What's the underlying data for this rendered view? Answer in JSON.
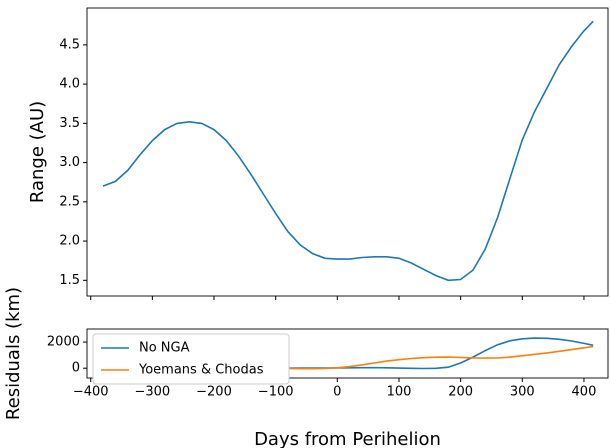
{
  "chart_data": [
    {
      "type": "line",
      "ylabel": "Range (AU)",
      "x": [
        -380,
        -360,
        -340,
        -320,
        -300,
        -280,
        -260,
        -240,
        -220,
        -200,
        -180,
        -160,
        -140,
        -120,
        -100,
        -80,
        -60,
        -40,
        -20,
        0,
        20,
        40,
        60,
        80,
        100,
        120,
        140,
        160,
        180,
        200,
        220,
        240,
        260,
        280,
        300,
        320,
        340,
        360,
        380,
        400,
        415
      ],
      "series": [
        {
          "color": "#1f77b4",
          "values": [
            2.7,
            2.76,
            2.9,
            3.1,
            3.28,
            3.42,
            3.5,
            3.52,
            3.5,
            3.42,
            3.28,
            3.08,
            2.85,
            2.6,
            2.35,
            2.12,
            1.95,
            1.84,
            1.78,
            1.77,
            1.77,
            1.79,
            1.8,
            1.8,
            1.78,
            1.72,
            1.64,
            1.56,
            1.5,
            1.51,
            1.63,
            1.9,
            2.3,
            2.8,
            3.29,
            3.65,
            3.95,
            4.25,
            4.48,
            4.68,
            4.8
          ]
        }
      ],
      "xlim": [
        -406,
        439
      ],
      "ylim": [
        1.3,
        4.97
      ],
      "yticks": [
        1.5,
        {
          "value": 2,
          "label": "2.0"
        },
        2.5,
        {
          "value": 3,
          "label": "3.0"
        },
        3.5,
        {
          "value": 4,
          "label": "4.0"
        },
        4.5
      ]
    },
    {
      "type": "line",
      "ylabel": "Residuals (km)",
      "xlabel": "Days from Perihelion",
      "x": [
        -380,
        -360,
        -340,
        -320,
        -300,
        -280,
        -260,
        -240,
        -220,
        -200,
        -180,
        -160,
        -140,
        -120,
        -100,
        -80,
        -60,
        -40,
        -20,
        0,
        20,
        40,
        60,
        80,
        100,
        120,
        140,
        160,
        180,
        200,
        220,
        240,
        260,
        280,
        300,
        320,
        340,
        360,
        380,
        400,
        415
      ],
      "series": [
        {
          "name": "No NGA",
          "color": "#1f77b4",
          "values": [
            0,
            0,
            0,
            0,
            0,
            0,
            0,
            0,
            0,
            0,
            0,
            0,
            0,
            0,
            0,
            0,
            5,
            10,
            15,
            20,
            30,
            40,
            40,
            30,
            10,
            -10,
            -20,
            -10,
            80,
            400,
            850,
            1350,
            1800,
            2100,
            2250,
            2300,
            2290,
            2210,
            2080,
            1900,
            1750
          ]
        },
        {
          "name": "Yoemans & Chodas",
          "color": "#ff7f0e",
          "values": [
            0,
            0,
            0,
            0,
            0,
            0,
            0,
            0,
            0,
            0,
            0,
            0,
            -5,
            -10,
            -15,
            -25,
            -35,
            -40,
            -20,
            30,
            120,
            250,
            400,
            540,
            650,
            740,
            800,
            840,
            850,
            830,
            790,
            770,
            780,
            850,
            950,
            1060,
            1170,
            1290,
            1420,
            1560,
            1660
          ]
        }
      ],
      "xlim": [
        -406,
        439
      ],
      "ylim": [
        -750,
        3000
      ],
      "xticks": [
        {
          "value": -400,
          "label": "−400"
        },
        {
          "value": -300,
          "label": "−300"
        },
        {
          "value": -200,
          "label": "−200"
        },
        {
          "value": -100,
          "label": "−100"
        },
        0,
        100,
        200,
        300,
        400
      ],
      "yticks": [
        0,
        2000
      ],
      "legend": "upper left"
    }
  ]
}
